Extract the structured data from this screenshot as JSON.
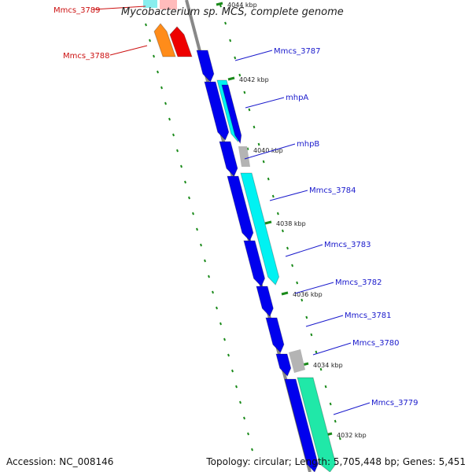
{
  "title": "Mycobacterium sp. MCS, complete genome",
  "footer": {
    "accession": "Accession: NC_008146",
    "summary": "Topology: circular; Length: 5,705,448 bp; Genes: 5,451"
  },
  "colors": {
    "backbone": "#888888",
    "cds": "#0000ee",
    "cds_outline": "#0000aa",
    "cyan": "#00f2f2",
    "teal": "#20e8a8",
    "grey": "#b4b4b4",
    "orange": "#ff8c1a",
    "red": "#ee0000",
    "tick": "#1a8a1a",
    "blue_label": "#1a1acc",
    "red_label": "#cc1111"
  },
  "ticks": [
    "4044 kbp",
    "4042 kbp",
    "4040 kbp",
    "4038 kbp",
    "4036 kbp",
    "4034 kbp",
    "4032 kbp"
  ],
  "genes": [
    {
      "name": "Mmcs_3789",
      "color": "red"
    },
    {
      "name": "Mmcs_3788",
      "color": "red"
    },
    {
      "name": "Mmcs_3787",
      "color": "blue"
    },
    {
      "name": "mhpA",
      "color": "blue"
    },
    {
      "name": "mhpB",
      "color": "blue"
    },
    {
      "name": "Mmcs_3784",
      "color": "blue"
    },
    {
      "name": "Mmcs_3783",
      "color": "blue"
    },
    {
      "name": "Mmcs_3782",
      "color": "blue"
    },
    {
      "name": "Mmcs_3781",
      "color": "blue"
    },
    {
      "name": "Mmcs_3780",
      "color": "blue"
    },
    {
      "name": "Mmcs_3779",
      "color": "blue"
    }
  ]
}
